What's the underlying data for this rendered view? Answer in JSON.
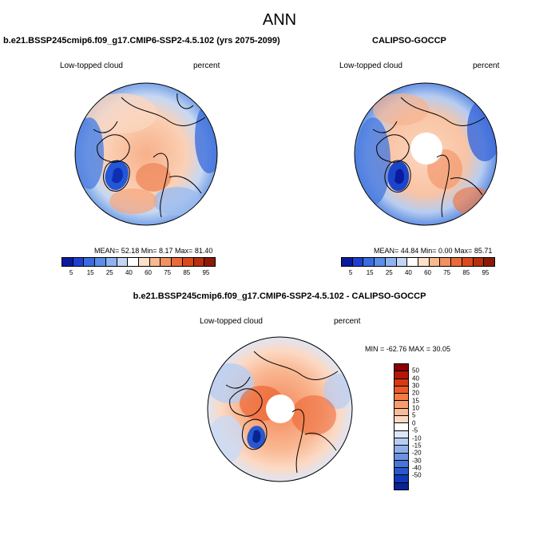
{
  "main_title": "ANN",
  "panels": {
    "model": {
      "title": "b.e21.BSSP245cmip6.f09_g17.CMIP6-SSP2-4.5.102 (yrs 2075-2099)",
      "left_label": "Low-topped cloud",
      "right_label": "percent",
      "stats": "MEAN=  52.18  Min=   8.17  Max=  81.40"
    },
    "obs": {
      "title": "CALIPSO-GOCCP",
      "left_label": "Low-topped cloud",
      "right_label": "percent",
      "stats": "MEAN=  44.84  Min=   0.00  Max=  85.71"
    },
    "diff": {
      "title": "b.e21.BSSP245cmip6.f09_g17.CMIP6-SSP2-4.5.102 - CALIPSO-GOCCP",
      "left_label": "Low-topped cloud",
      "right_label": "percent",
      "stats": "MIN = -62.76 MAX =  30.05"
    }
  },
  "abs_colorbar": {
    "colors": [
      "#0a1a9e",
      "#1f3fd0",
      "#3b6be0",
      "#5b8ee8",
      "#8fb3ef",
      "#c3d6f4",
      "#ffffff",
      "#fde0c8",
      "#f8b98e",
      "#f39062",
      "#ec6a3a",
      "#dc4a1c",
      "#b8300f",
      "#8c1a08"
    ],
    "tick_labels": [
      "5",
      "15",
      "25",
      "40",
      "60",
      "75",
      "85",
      "95"
    ]
  },
  "diff_colorbar": {
    "colors": [
      "#8b0000",
      "#b3170a",
      "#d63a12",
      "#eb5a26",
      "#f47b45",
      "#f79c6c",
      "#f9bc97",
      "#fbd9c2",
      "#ffffff",
      "#dbe6f8",
      "#b7cdf2",
      "#8fb0ea",
      "#6b93e2",
      "#4776da",
      "#2858cc",
      "#1139b5",
      "#072395"
    ],
    "tick_labels": [
      "50",
      "40",
      "30",
      "20",
      "15",
      "10",
      "5",
      "0",
      "-5",
      "-10",
      "-15",
      "-20",
      "-30",
      "-40",
      "-50"
    ]
  }
}
